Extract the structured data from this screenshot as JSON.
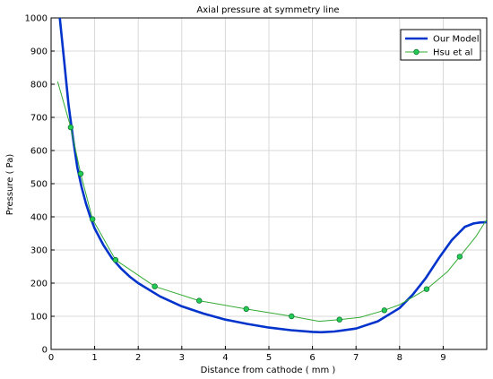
{
  "chart_data": {
    "type": "line",
    "title": "Axial pressure at symmetry line",
    "xlabel": "Distance from cathode ( mm )",
    "ylabel": "Pressure ( Pa)",
    "xlim": [
      0,
      10
    ],
    "ylim": [
      0,
      1000
    ],
    "xticks": [
      0,
      1,
      2,
      3,
      4,
      5,
      6,
      7,
      8,
      9
    ],
    "yticks": [
      0,
      100,
      200,
      300,
      400,
      500,
      600,
      700,
      800,
      900,
      1000
    ],
    "grid": true,
    "legend_position": "top-right",
    "series": [
      {
        "name": "Our Model",
        "color": "#0033cc",
        "marker": "none",
        "x": [
          0.2,
          0.3,
          0.4,
          0.5,
          0.6,
          0.7,
          0.8,
          0.9,
          1.0,
          1.2,
          1.4,
          1.6,
          1.8,
          2.0,
          2.5,
          3.0,
          3.5,
          4.0,
          4.5,
          5.0,
          5.5,
          6.0,
          6.2,
          6.5,
          7.0,
          7.5,
          8.0,
          8.3,
          8.6,
          8.9,
          9.2,
          9.5,
          9.7,
          9.85,
          10.0
        ],
        "y": [
          1000,
          870,
          740,
          640,
          550,
          490,
          440,
          400,
          365,
          315,
          275,
          245,
          220,
          200,
          160,
          130,
          108,
          90,
          77,
          66,
          58,
          53,
          52,
          54,
          63,
          85,
          125,
          165,
          215,
          275,
          330,
          370,
          380,
          383,
          384
        ]
      },
      {
        "name": "Hsu et al",
        "color": "#33aa33",
        "marker": "circle",
        "marker_fill": "#22cc55",
        "x": [
          0.15,
          0.45,
          0.68,
          0.95,
          1.48,
          2.38,
          3.4,
          4.48,
          5.52,
          6.15,
          6.62,
          7.1,
          7.65,
          8.0,
          8.62,
          9.1,
          9.38,
          9.75,
          10.0
        ],
        "y": [
          808,
          670,
          530,
          393,
          270,
          190,
          147,
          122,
          100,
          85,
          90,
          97,
          118,
          135,
          182,
          235,
          280,
          340,
          392
        ],
        "marker_indices": [
          1,
          2,
          3,
          4,
          5,
          6,
          7,
          8,
          10,
          12,
          14,
          16
        ]
      }
    ]
  }
}
